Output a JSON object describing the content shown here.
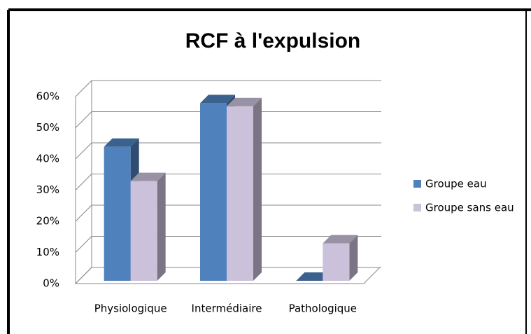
{
  "chart_data": {
    "type": "bar3d",
    "title": "RCF à l'expulsion",
    "categories": [
      "Physiologique",
      "Intermédiaire",
      "Pathologique"
    ],
    "series": [
      {
        "name": "Groupe eau",
        "color": "#4f81bd",
        "values": [
          43,
          57,
          0
        ]
      },
      {
        "name": "Groupe sans eau",
        "color": "#ccc1da",
        "values": [
          32,
          56,
          12
        ]
      }
    ],
    "ylim": [
      0,
      60
    ],
    "yticks": [
      {
        "value": 0,
        "label": "0%"
      },
      {
        "value": 10,
        "label": "10%"
      },
      {
        "value": 20,
        "label": "20%"
      },
      {
        "value": 30,
        "label": "30%"
      },
      {
        "value": 40,
        "label": "40%"
      },
      {
        "value": 50,
        "label": "50%"
      },
      {
        "value": 60,
        "label": "60%"
      }
    ],
    "grid": true,
    "legend": "right"
  }
}
